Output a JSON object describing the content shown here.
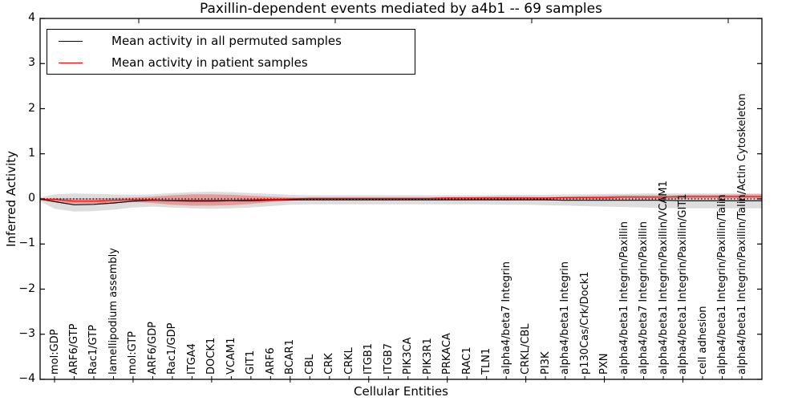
{
  "title": "Paxillin-dependent events mediated by a4b1 -- 69 samples",
  "legend": {
    "items": [
      {
        "label": "Mean activity in all permuted samples",
        "color": "#000000"
      },
      {
        "label": "Mean activity in patient samples",
        "color": "#ff0000"
      }
    ]
  },
  "chart_data": {
    "type": "line",
    "title": "Paxillin-dependent events mediated by a4b1 -- 69 samples",
    "xlabel": "Cellular Entities",
    "ylabel": "Inferred Activity",
    "ylim": [
      -4,
      4
    ],
    "yticks": [
      4,
      3,
      2,
      1,
      0,
      -1,
      -2,
      -3,
      -4
    ],
    "grid": false,
    "legend_position": "upper left",
    "zero_line": {
      "y": 0,
      "style": "dotted",
      "color": "#000000"
    },
    "categories": [
      "mol:GDP",
      "ARF6/GTP",
      "Rac1/GTP",
      "lamellipodium assembly",
      "mol:GTP",
      "ARF6/GDP",
      "Rac1/GDP",
      "ITGA4",
      "DOCK1",
      "VCAM1",
      "GIT1",
      "ARF6",
      "BCAR1",
      "CBL",
      "CRK",
      "CRKL",
      "ITGB1",
      "ITGB7",
      "PIK3CA",
      "PIK3R1",
      "PRKACA",
      "RAC1",
      "TLN1",
      "alpha4/beta7 Integrin",
      "CRKL/CBL",
      "PI3K",
      "alpha4/beta1 Integrin",
      "p130Cas/Crk/Dock1",
      "PXN",
      "alpha4/beta1 Integrin/Paxillin",
      "alpha4/beta7 Integrin/Paxillin",
      "alpha4/beta1 Integrin/Paxillin/VCAM1",
      "alpha4/beta1 Integrin/Paxillin/GIT1",
      "cell adhesion",
      "alpha4/beta1 Integrin/Paxillin/Talin",
      "alpha4/beta1 Integrin/Paxillin/Talin/Actin Cytoskeleton"
    ],
    "series": [
      {
        "name": "Mean activity in all permuted samples",
        "color": "#000000",
        "band_color": "#aaaaaa",
        "band_opacity": 0.4,
        "values": [
          -0.06,
          -0.13,
          -0.12,
          -0.09,
          -0.05,
          -0.03,
          -0.04,
          -0.05,
          -0.05,
          -0.04,
          -0.04,
          -0.03,
          -0.02,
          -0.02,
          -0.02,
          -0.02,
          -0.02,
          -0.02,
          -0.02,
          -0.02,
          -0.02,
          -0.02,
          -0.02,
          -0.02,
          -0.02,
          -0.02,
          -0.03,
          -0.03,
          -0.03,
          -0.03,
          -0.03,
          -0.03,
          -0.04,
          -0.04,
          -0.04,
          -0.04
        ],
        "band_upper": [
          0.1,
          0.12,
          0.11,
          0.1,
          0.09,
          0.1,
          0.13,
          0.15,
          0.16,
          0.15,
          0.13,
          0.11,
          0.09,
          0.08,
          0.08,
          0.08,
          0.08,
          0.08,
          0.08,
          0.08,
          0.08,
          0.08,
          0.08,
          0.09,
          0.09,
          0.09,
          0.1,
          0.1,
          0.11,
          0.11,
          0.12,
          0.12,
          0.12,
          0.12,
          0.12,
          0.12
        ],
        "band_lower": [
          -0.22,
          -0.28,
          -0.27,
          -0.24,
          -0.19,
          -0.17,
          -0.19,
          -0.21,
          -0.22,
          -0.21,
          -0.19,
          -0.16,
          -0.13,
          -0.12,
          -0.12,
          -0.12,
          -0.12,
          -0.12,
          -0.12,
          -0.12,
          -0.12,
          -0.12,
          -0.12,
          -0.13,
          -0.13,
          -0.14,
          -0.15,
          -0.16,
          -0.17,
          -0.18,
          -0.19,
          -0.2,
          -0.21,
          -0.21,
          -0.21,
          -0.21
        ]
      },
      {
        "name": "Mean activity in patient samples",
        "color": "#ff0000",
        "band_color": "#ff0000",
        "band_opacity": 0.3,
        "values": [
          -0.01,
          -0.05,
          -0.05,
          -0.03,
          -0.02,
          -0.02,
          -0.03,
          -0.03,
          -0.03,
          -0.03,
          -0.02,
          -0.01,
          0.0,
          0.01,
          0.01,
          0.01,
          0.01,
          0.01,
          0.01,
          0.01,
          0.02,
          0.02,
          0.02,
          0.02,
          0.02,
          0.02,
          0.03,
          0.03,
          0.03,
          0.04,
          0.04,
          0.04,
          0.05,
          0.05,
          0.05,
          0.05
        ],
        "band_upper": [
          0.02,
          0.01,
          0.01,
          0.02,
          0.03,
          0.05,
          0.08,
          0.1,
          0.1,
          0.09,
          0.07,
          0.05,
          0.03,
          0.03,
          0.03,
          0.03,
          0.03,
          0.03,
          0.03,
          0.03,
          0.04,
          0.04,
          0.05,
          0.05,
          0.05,
          0.04,
          0.05,
          0.06,
          0.07,
          0.08,
          0.08,
          0.08,
          0.09,
          0.09,
          0.09,
          0.1
        ],
        "band_lower": [
          -0.06,
          -0.1,
          -0.1,
          -0.08,
          -0.07,
          -0.09,
          -0.13,
          -0.15,
          -0.15,
          -0.14,
          -0.11,
          -0.07,
          -0.04,
          -0.02,
          -0.02,
          -0.02,
          -0.02,
          -0.02,
          -0.02,
          -0.02,
          -0.01,
          -0.01,
          -0.01,
          -0.02,
          -0.02,
          -0.01,
          0.0,
          0.0,
          0.0,
          0.01,
          0.01,
          0.0,
          0.0,
          0.01,
          0.01,
          0.01
        ]
      }
    ]
  }
}
